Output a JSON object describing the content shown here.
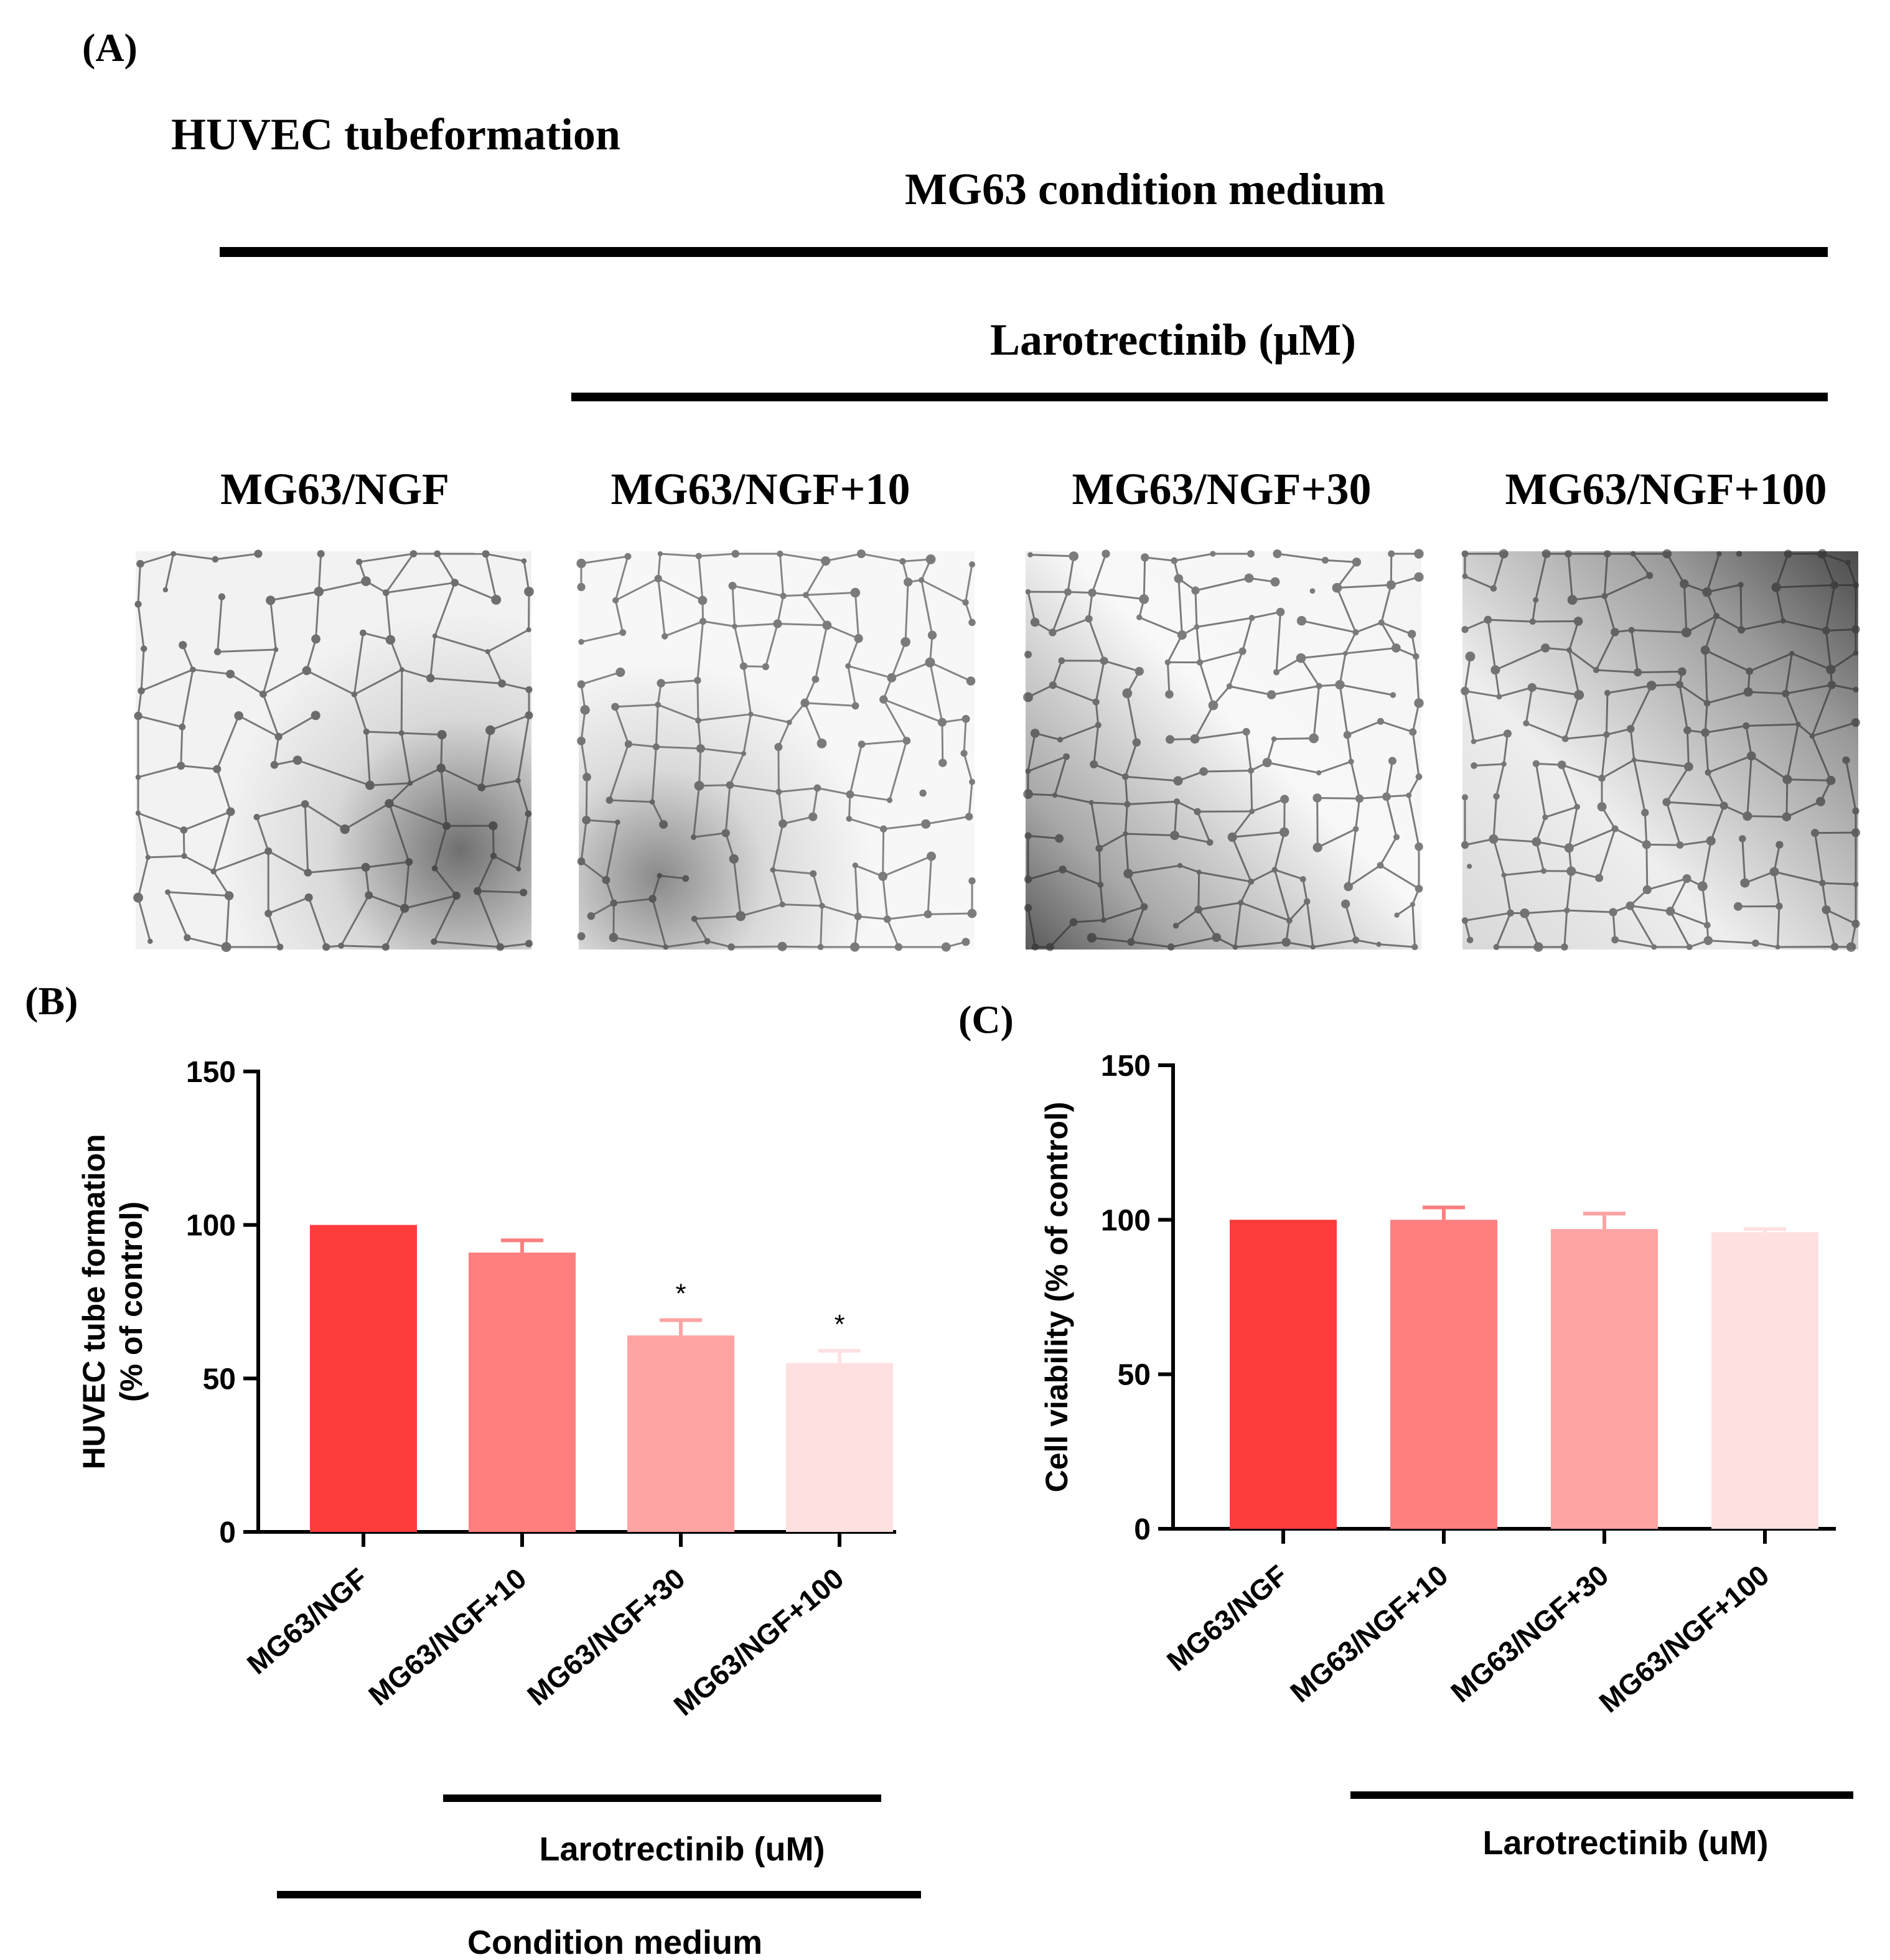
{
  "panel_a": {
    "letter": "(A)",
    "title": "HUVEC tubeformation",
    "group_label": "MG63 condition medium",
    "drug_label": "Larotrectinib (μM)",
    "images": [
      {
        "label": "MG63/NGF",
        "icon": "microscopy-tube-network-image"
      },
      {
        "label": "MG63/NGF+10",
        "icon": "microscopy-tube-network-image"
      },
      {
        "label": "MG63/NGF+30",
        "icon": "microscopy-tube-network-image"
      },
      {
        "label": "MG63/NGF+100",
        "icon": "microscopy-tube-network-image"
      }
    ]
  },
  "panel_b": {
    "letter": "(B)",
    "drug_bracket_label": "Larotrectinib (uM)",
    "medium_bracket_label": "Condition medium"
  },
  "panel_c": {
    "letter": "(C)",
    "drug_bracket_label": "Larotrectinib (uM)"
  },
  "colors": [
    "#ff3c3c",
    "#ff7f7f",
    "#ffa3a3",
    "#ffe0e0"
  ],
  "chart_data": [
    {
      "id": "B",
      "type": "bar",
      "ylabel_line1": "HUVEC tube formation",
      "ylabel_line2": "(% of control)",
      "categories": [
        "MG63/NGF",
        "MG63/NGF+10",
        "MG63/NGF+30",
        "MG63/NGF+100"
      ],
      "values": [
        100,
        91,
        64,
        55
      ],
      "errors": [
        0,
        4,
        5,
        4
      ],
      "significance": [
        "",
        "",
        "*",
        "*"
      ],
      "ylim": [
        0,
        150
      ],
      "yticks": [
        0,
        50,
        100,
        150
      ]
    },
    {
      "id": "C",
      "type": "bar",
      "ylabel_line1": "Cell viability (% of control)",
      "categories": [
        "MG63/NGF",
        "MG63/NGF+10",
        "MG63/NGF+30",
        "MG63/NGF+100"
      ],
      "values": [
        100,
        100,
        97,
        96
      ],
      "errors": [
        0,
        4,
        5,
        1
      ],
      "significance": [
        "",
        "",
        "",
        ""
      ],
      "ylim": [
        0,
        150
      ],
      "yticks": [
        0,
        50,
        100,
        150
      ]
    }
  ]
}
